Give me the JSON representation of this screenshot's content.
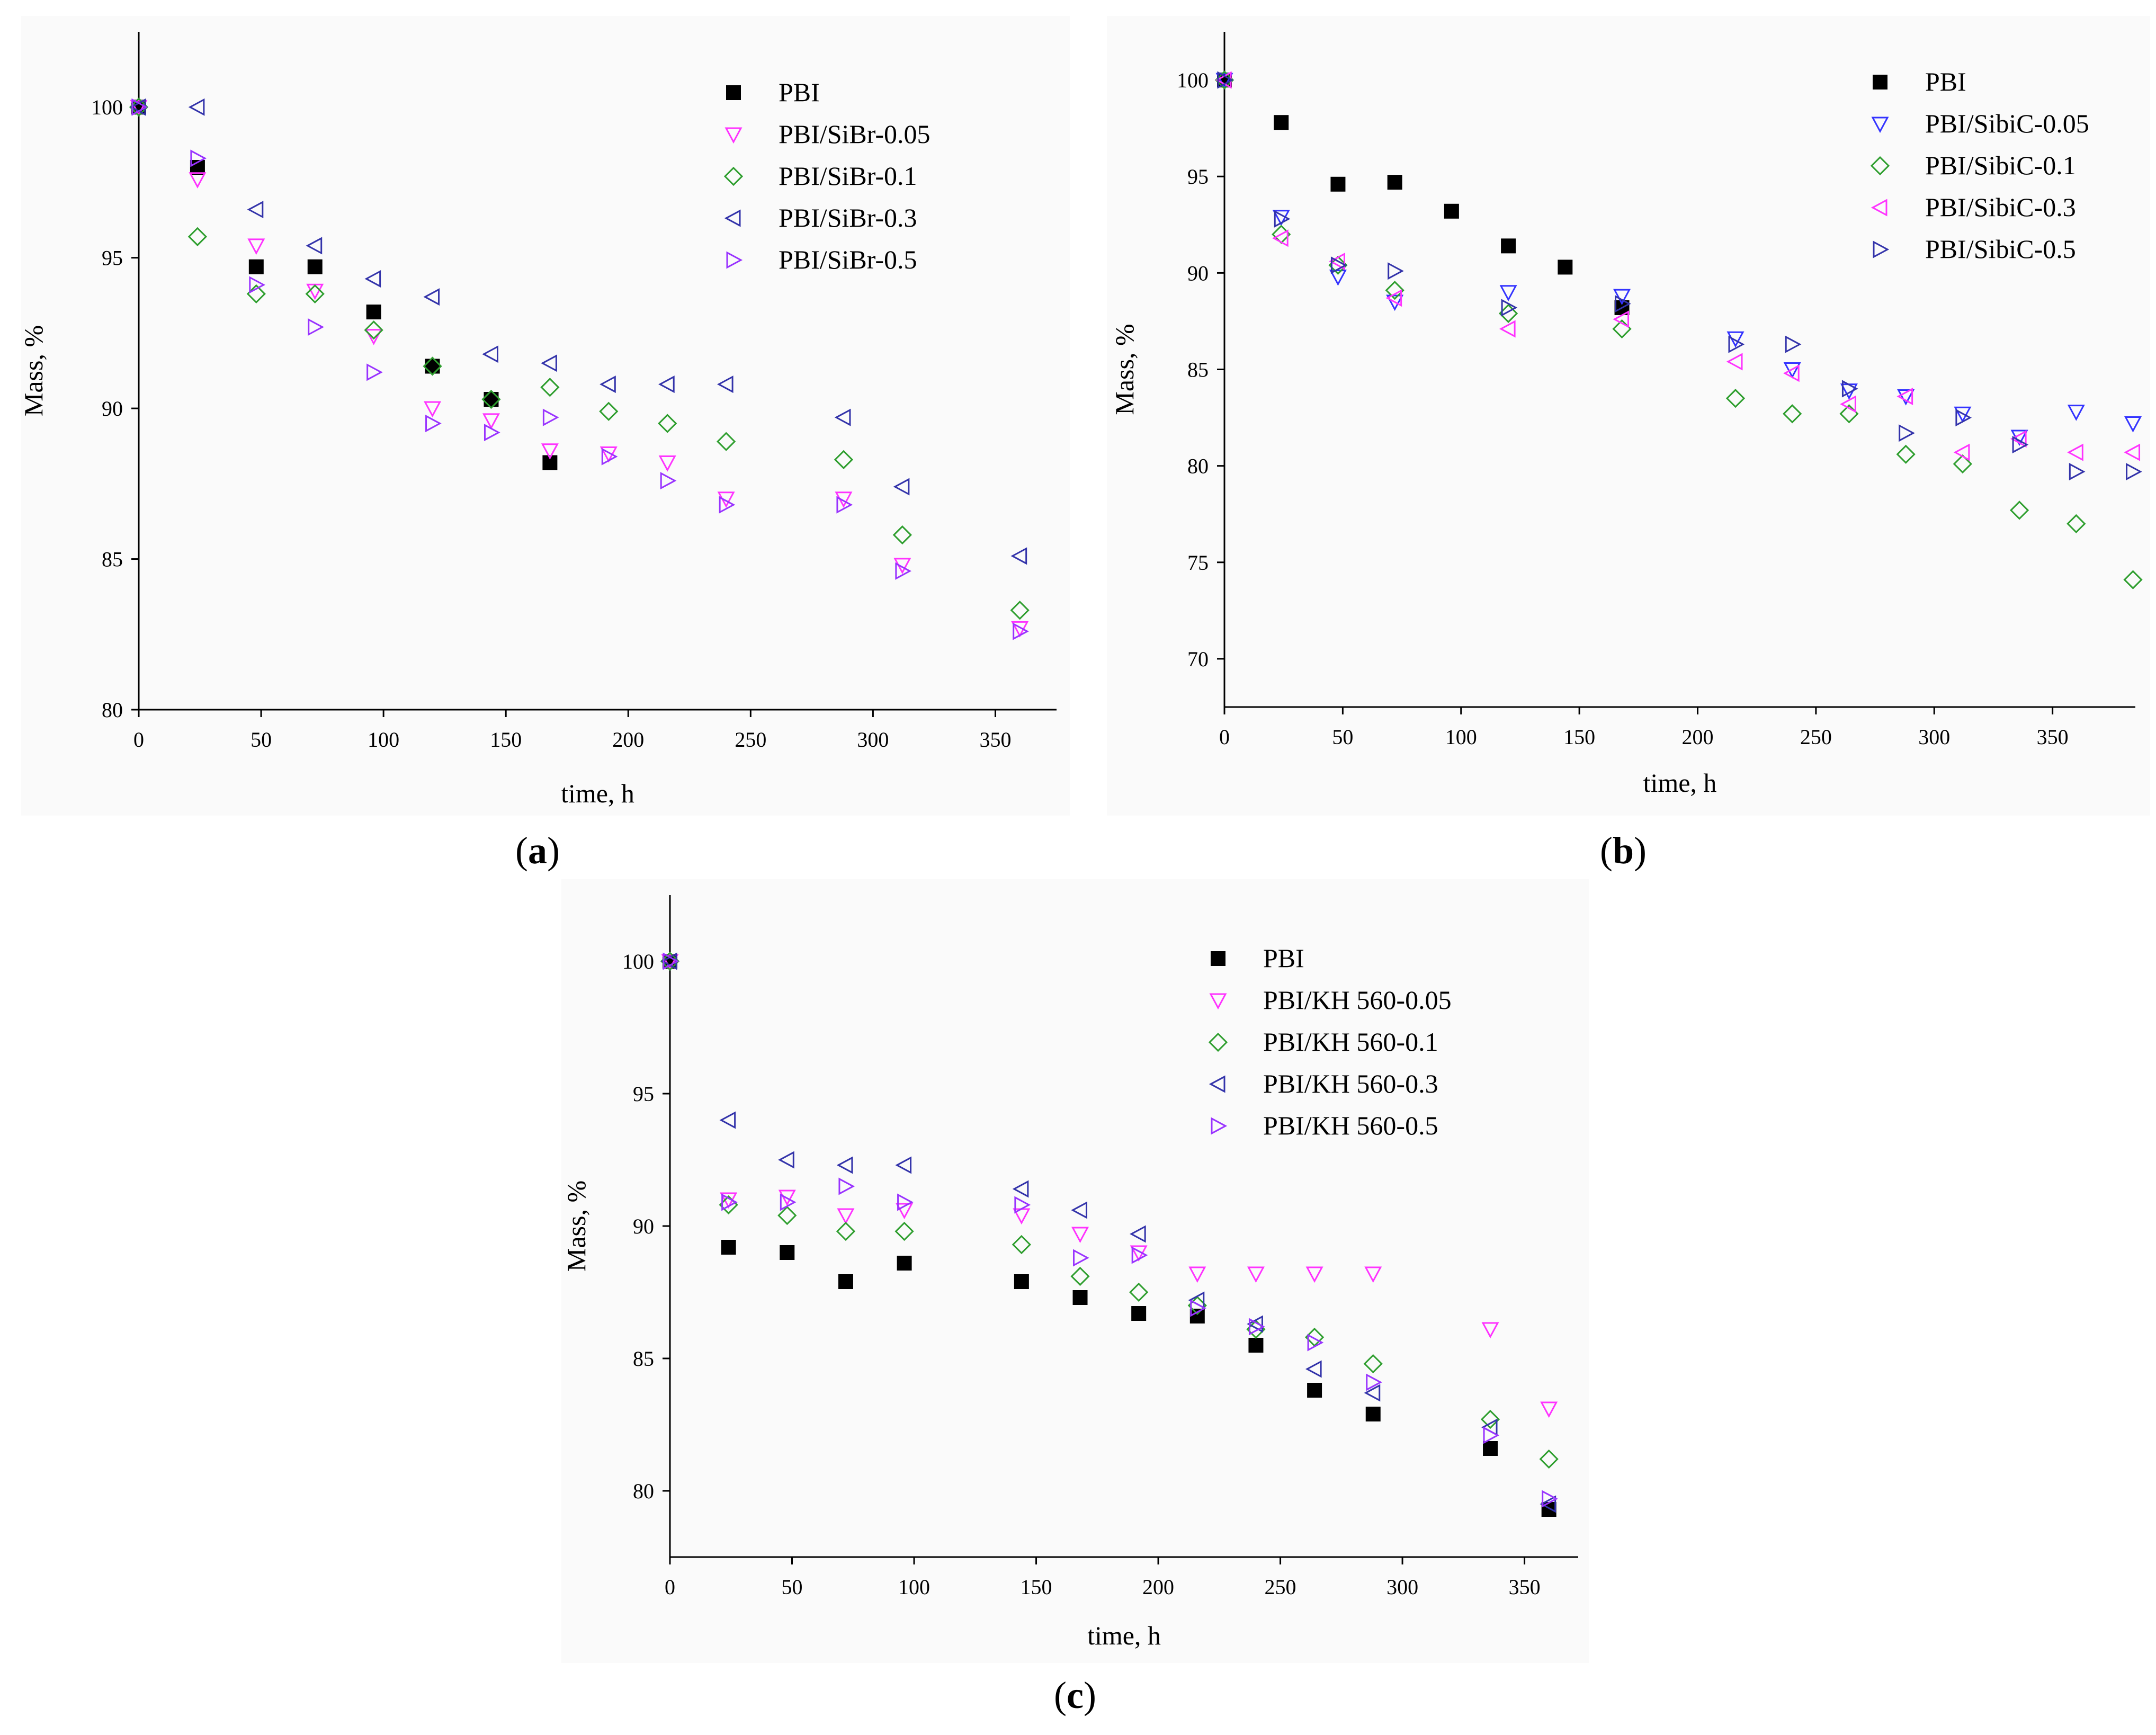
{
  "figure": {
    "panel_labels": [
      "(a)",
      "(b)",
      "(c)"
    ]
  },
  "chart_data": [
    {
      "id": "a",
      "type": "scatter",
      "panel_label": "(a)",
      "xlabel": "time, h",
      "ylabel": "Mass, %",
      "xlim": [
        0,
        375
      ],
      "ylim": [
        80,
        102.5
      ],
      "xticks": [
        0,
        50,
        100,
        150,
        200,
        250,
        300,
        350
      ],
      "yticks": [
        80,
        85,
        90,
        95,
        100
      ],
      "legend_position": "top-right",
      "series": [
        {
          "name": "PBI",
          "marker": "square-filled",
          "color": "#000000",
          "points": [
            [
              0,
              100
            ],
            [
              24,
              98
            ],
            [
              48,
              94.7
            ],
            [
              72,
              94.7
            ],
            [
              96,
              93.2
            ],
            [
              120,
              91.4
            ],
            [
              144,
              90.3
            ],
            [
              168,
              88.2
            ]
          ]
        },
        {
          "name": "PBI/SiBr-0.05",
          "marker": "triangle-down",
          "color": "#ff33ff",
          "points": [
            [
              0,
              100
            ],
            [
              24,
              97.6
            ],
            [
              48,
              95.4
            ],
            [
              72,
              93.9
            ],
            [
              96,
              92.4
            ],
            [
              120,
              90
            ],
            [
              144,
              89.6
            ],
            [
              168,
              88.6
            ],
            [
              192,
              88.5
            ],
            [
              216,
              88.2
            ],
            [
              240,
              87
            ],
            [
              288,
              87
            ],
            [
              312,
              84.8
            ],
            [
              360,
              82.7
            ]
          ]
        },
        {
          "name": "PBI/SiBr-0.1",
          "marker": "diamond",
          "color": "#2e9e2e",
          "points": [
            [
              0,
              100
            ],
            [
              24,
              95.7
            ],
            [
              48,
              93.8
            ],
            [
              72,
              93.8
            ],
            [
              96,
              92.6
            ],
            [
              120,
              91.4
            ],
            [
              144,
              90.3
            ],
            [
              168,
              90.7
            ],
            [
              192,
              89.9
            ],
            [
              216,
              89.5
            ],
            [
              240,
              88.9
            ],
            [
              288,
              88.3
            ],
            [
              312,
              85.8
            ],
            [
              360,
              83.3
            ]
          ]
        },
        {
          "name": "PBI/SiBr-0.3",
          "marker": "triangle-left",
          "color": "#3333aa",
          "points": [
            [
              0,
              100
            ],
            [
              24,
              100
            ],
            [
              48,
              96.6
            ],
            [
              72,
              95.4
            ],
            [
              96,
              94.3
            ],
            [
              120,
              93.7
            ],
            [
              144,
              91.8
            ],
            [
              168,
              91.5
            ],
            [
              192,
              90.8
            ],
            [
              216,
              90.8
            ],
            [
              240,
              90.8
            ],
            [
              288,
              89.7
            ],
            [
              312,
              87.4
            ],
            [
              360,
              85.1
            ]
          ]
        },
        {
          "name": "PBI/SiBr-0.5",
          "marker": "triangle-right",
          "color": "#9933ff",
          "points": [
            [
              0,
              100
            ],
            [
              24,
              98.3
            ],
            [
              48,
              94.1
            ],
            [
              72,
              92.7
            ],
            [
              96,
              91.2
            ],
            [
              120,
              89.5
            ],
            [
              144,
              89.2
            ],
            [
              168,
              89.7
            ],
            [
              192,
              88.4
            ],
            [
              216,
              87.6
            ],
            [
              240,
              86.8
            ],
            [
              288,
              86.8
            ],
            [
              312,
              84.6
            ],
            [
              360,
              82.6
            ]
          ]
        }
      ]
    },
    {
      "id": "b",
      "type": "scatter",
      "panel_label": "(b)",
      "xlabel": "time, h",
      "ylabel": "Mass, %",
      "xlim": [
        0,
        385
      ],
      "ylim": [
        67.5,
        102.5
      ],
      "xticks": [
        0,
        50,
        100,
        150,
        200,
        250,
        300,
        350
      ],
      "yticks": [
        70,
        75,
        80,
        85,
        90,
        95,
        100
      ],
      "legend_position": "top-right",
      "series": [
        {
          "name": "PBI",
          "marker": "square-filled",
          "color": "#000000",
          "points": [
            [
              0,
              100
            ],
            [
              24,
              97.8
            ],
            [
              48,
              94.6
            ],
            [
              72,
              94.7
            ],
            [
              96,
              93.2
            ],
            [
              120,
              91.4
            ],
            [
              144,
              90.3
            ],
            [
              168,
              88.2
            ]
          ]
        },
        {
          "name": "PBI/SibiC-0.05",
          "marker": "triangle-down",
          "color": "#3333ff",
          "points": [
            [
              0,
              100
            ],
            [
              24,
              92.9
            ],
            [
              48,
              89.8
            ],
            [
              72,
              88.5
            ],
            [
              120,
              89
            ],
            [
              168,
              88.8
            ],
            [
              216,
              86.6
            ],
            [
              240,
              85
            ],
            [
              264,
              83.9
            ],
            [
              288,
              83.6
            ],
            [
              312,
              82.7
            ],
            [
              336,
              81.5
            ],
            [
              360,
              82.8
            ],
            [
              384,
              82.2
            ]
          ]
        },
        {
          "name": "PBI/SibiC-0.1",
          "marker": "diamond",
          "color": "#2e9e2e",
          "points": [
            [
              0,
              100
            ],
            [
              24,
              92
            ],
            [
              48,
              90.4
            ],
            [
              72,
              89.1
            ],
            [
              120,
              87.9
            ],
            [
              168,
              87.1
            ],
            [
              216,
              83.5
            ],
            [
              240,
              82.7
            ],
            [
              264,
              82.7
            ],
            [
              288,
              80.6
            ],
            [
              312,
              80.1
            ],
            [
              336,
              77.7
            ],
            [
              360,
              77
            ],
            [
              384,
              74.1
            ]
          ]
        },
        {
          "name": "PBI/SibiC-0.3",
          "marker": "triangle-left",
          "color": "#ff33ff",
          "points": [
            [
              0,
              100
            ],
            [
              24,
              91.8
            ],
            [
              48,
              90.6
            ],
            [
              72,
              88.7
            ],
            [
              120,
              87.1
            ],
            [
              168,
              87.6
            ],
            [
              216,
              85.4
            ],
            [
              240,
              84.8
            ],
            [
              264,
              83.2
            ],
            [
              288,
              83.6
            ],
            [
              312,
              80.7
            ],
            [
              336,
              81.4
            ],
            [
              360,
              80.7
            ],
            [
              384,
              80.7
            ]
          ]
        },
        {
          "name": "PBI/SibiC-0.5",
          "marker": "triangle-right",
          "color": "#3333aa",
          "points": [
            [
              0,
              100
            ],
            [
              24,
              92.8
            ],
            [
              48,
              90.4
            ],
            [
              72,
              90.1
            ],
            [
              120,
              88.2
            ],
            [
              168,
              88.4
            ],
            [
              216,
              86.3
            ],
            [
              240,
              86.3
            ],
            [
              264,
              84
            ],
            [
              288,
              81.7
            ],
            [
              312,
              82.5
            ],
            [
              336,
              81.1
            ],
            [
              360,
              79.7
            ],
            [
              384,
              79.7
            ]
          ]
        }
      ]
    },
    {
      "id": "c",
      "type": "scatter",
      "panel_label": "(c)",
      "xlabel": "time, h",
      "ylabel": "Mass, %",
      "xlim": [
        0,
        372
      ],
      "ylim": [
        77.5,
        102.5
      ],
      "xticks": [
        0,
        50,
        100,
        150,
        200,
        250,
        300,
        350
      ],
      "yticks": [
        80,
        85,
        90,
        95,
        100
      ],
      "legend_position": "top-right",
      "series": [
        {
          "name": "PBI",
          "marker": "square-filled",
          "color": "#000000",
          "points": [
            [
              0,
              100
            ],
            [
              24,
              89.2
            ],
            [
              48,
              89
            ],
            [
              72,
              87.9
            ],
            [
              96,
              88.6
            ],
            [
              144,
              87.9
            ],
            [
              168,
              87.3
            ],
            [
              192,
              86.7
            ],
            [
              216,
              86.6
            ],
            [
              240,
              85.5
            ],
            [
              264,
              83.8
            ],
            [
              288,
              82.9
            ],
            [
              336,
              81.6
            ],
            [
              360,
              79.3
            ]
          ]
        },
        {
          "name": "PBI/KH 560-0.05",
          "marker": "triangle-down",
          "color": "#ff33ff",
          "points": [
            [
              0,
              100
            ],
            [
              24,
              91
            ],
            [
              48,
              91.1
            ],
            [
              72,
              90.4
            ],
            [
              96,
              90.6
            ],
            [
              144,
              90.4
            ],
            [
              168,
              89.7
            ],
            [
              192,
              89
            ],
            [
              216,
              88.2
            ],
            [
              240,
              88.2
            ],
            [
              264,
              88.2
            ],
            [
              288,
              88.2
            ],
            [
              336,
              86.1
            ],
            [
              360,
              83.1
            ]
          ]
        },
        {
          "name": "PBI/KH 560-0.1",
          "marker": "diamond",
          "color": "#2e9e2e",
          "points": [
            [
              0,
              100
            ],
            [
              24,
              90.8
            ],
            [
              48,
              90.4
            ],
            [
              72,
              89.8
            ],
            [
              96,
              89.8
            ],
            [
              144,
              89.3
            ],
            [
              168,
              88.1
            ],
            [
              192,
              87.5
            ],
            [
              216,
              87
            ],
            [
              240,
              86.1
            ],
            [
              264,
              85.8
            ],
            [
              288,
              84.8
            ],
            [
              336,
              82.7
            ],
            [
              360,
              81.2
            ]
          ]
        },
        {
          "name": "PBI/KH 560-0.3",
          "marker": "triangle-left",
          "color": "#3333aa",
          "points": [
            [
              0,
              100
            ],
            [
              24,
              94
            ],
            [
              48,
              92.5
            ],
            [
              72,
              92.3
            ],
            [
              96,
              92.3
            ],
            [
              144,
              91.4
            ],
            [
              168,
              90.6
            ],
            [
              192,
              89.7
            ],
            [
              216,
              87.2
            ],
            [
              240,
              86.3
            ],
            [
              264,
              84.6
            ],
            [
              288,
              83.7
            ],
            [
              336,
              82.4
            ],
            [
              360,
              79.5
            ]
          ]
        },
        {
          "name": "PBI/KH 560-0.5",
          "marker": "triangle-right",
          "color": "#9933ff",
          "points": [
            [
              0,
              100
            ],
            [
              24,
              90.9
            ],
            [
              48,
              90.9
            ],
            [
              72,
              91.5
            ],
            [
              96,
              90.9
            ],
            [
              144,
              90.8
            ],
            [
              168,
              88.8
            ],
            [
              192,
              88.9
            ],
            [
              216,
              86.9
            ],
            [
              240,
              86.2
            ],
            [
              264,
              85.6
            ],
            [
              288,
              84.1
            ],
            [
              336,
              82.1
            ],
            [
              360,
              79.7
            ]
          ]
        }
      ]
    }
  ]
}
